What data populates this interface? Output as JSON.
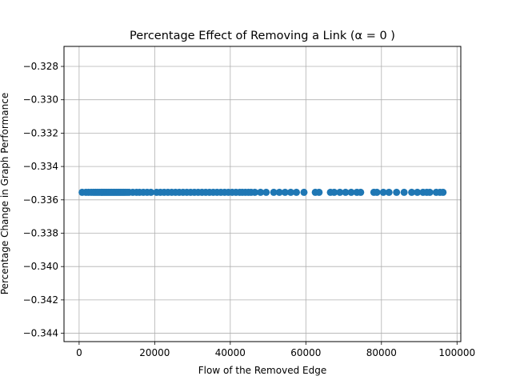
{
  "chart_data": {
    "type": "scatter",
    "title": "Percentage Effect of Removing a Link (α = 0 )",
    "xlabel": "Flow of the Removed Edge",
    "ylabel": "Percentage Change in Graph Performance",
    "xlim": [
      -4000,
      101000
    ],
    "ylim": [
      -0.3445,
      -0.3268
    ],
    "x_ticks": [
      0,
      20000,
      40000,
      60000,
      80000,
      100000
    ],
    "x_tick_labels": [
      "0",
      "20000",
      "40000",
      "60000",
      "80000",
      "100000"
    ],
    "y_ticks": [
      -0.328,
      -0.33,
      -0.332,
      -0.334,
      -0.336,
      -0.338,
      -0.34,
      -0.342,
      -0.344
    ],
    "y_tick_labels": [
      "−0.328",
      "−0.330",
      "−0.332",
      "−0.334",
      "−0.336",
      "−0.338",
      "−0.340",
      "−0.342",
      "−0.344"
    ],
    "grid": true,
    "marker_color": "#1f77b4",
    "y_value": -0.33555,
    "x": [
      800,
      1800,
      2500,
      3200,
      3800,
      4300,
      4800,
      5300,
      5800,
      6200,
      6600,
      7000,
      7400,
      7800,
      8200,
      8600,
      9000,
      9400,
      9800,
      10200,
      10600,
      11000,
      11400,
      11800,
      12200,
      12700,
      13200,
      14200,
      15200,
      16000,
      17000,
      18000,
      19000,
      20500,
      21500,
      22500,
      23500,
      24500,
      25500,
      26500,
      27500,
      28500,
      29500,
      30500,
      31500,
      32500,
      33500,
      34500,
      35500,
      36500,
      37500,
      38500,
      39500,
      40500,
      41500,
      42500,
      43200,
      44000,
      44800,
      45500,
      46500,
      48000,
      49500,
      51500,
      53000,
      54500,
      56000,
      57500,
      59500,
      62500,
      63500,
      66500,
      67500,
      69000,
      70500,
      72000,
      73500,
      74500,
      78000,
      78800,
      80500,
      82000,
      84000,
      86000,
      88000,
      89500,
      91000,
      92000,
      92800,
      94500,
      95500,
      96300
    ]
  }
}
